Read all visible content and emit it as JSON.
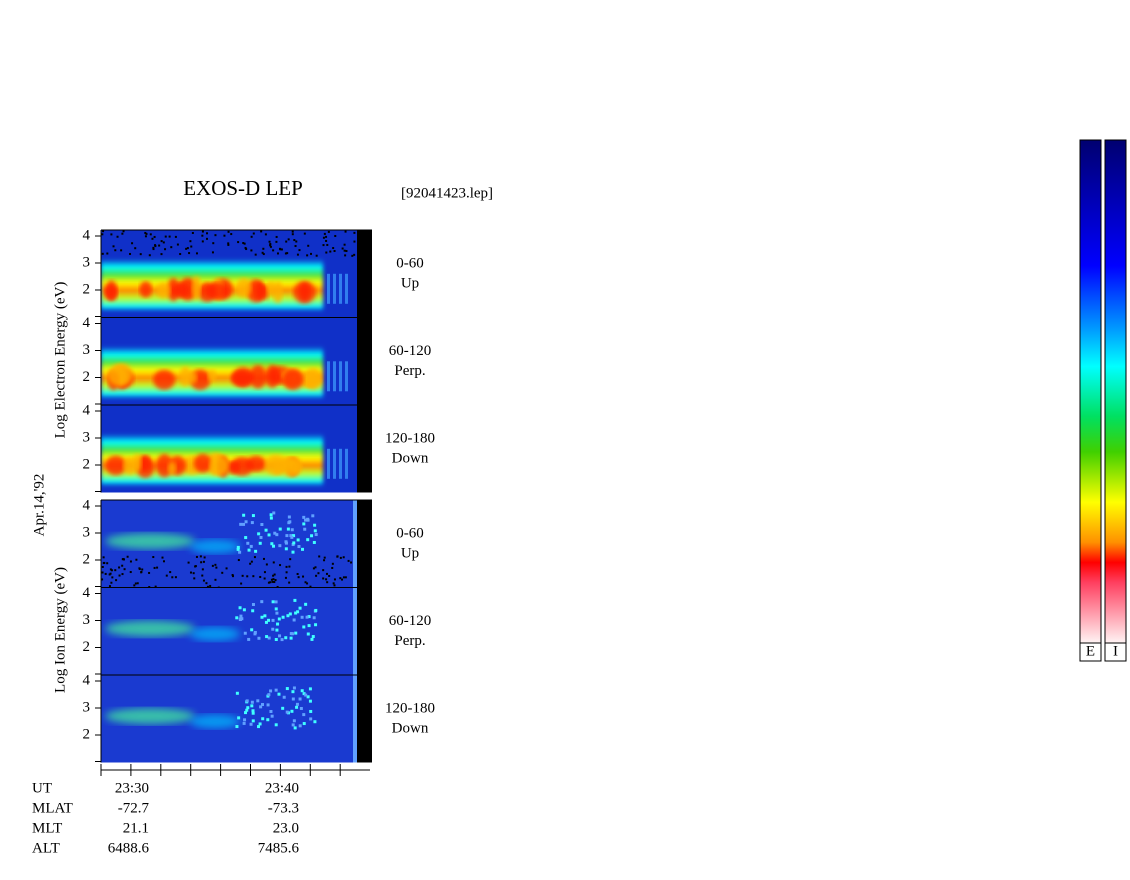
{
  "title": "EXOS-D LEP",
  "file": "[92041423.lep]",
  "date": "Apr.14,'92",
  "electron_axis_label": "Log Electron Energy (eV)",
  "ion_axis_label": "Log Ion Energy (eV)",
  "yticks": [
    4,
    3,
    2
  ],
  "pitch_angles": [
    {
      "range": "0-60",
      "direction": "Up"
    },
    {
      "range": "60-120",
      "direction": "Perp."
    },
    {
      "range": "120-180",
      "direction": "Down"
    }
  ],
  "time_axis": {
    "rows": [
      "UT",
      "MLAT",
      "MLT",
      "ALT"
    ],
    "columns": [
      [
        "23:30",
        "-72.7",
        "21.1",
        "6488.6"
      ],
      [
        "23:40",
        "-73.3",
        "23.0",
        "7485.6"
      ]
    ]
  },
  "colorbar_labels": [
    "E",
    "I"
  ]
}
